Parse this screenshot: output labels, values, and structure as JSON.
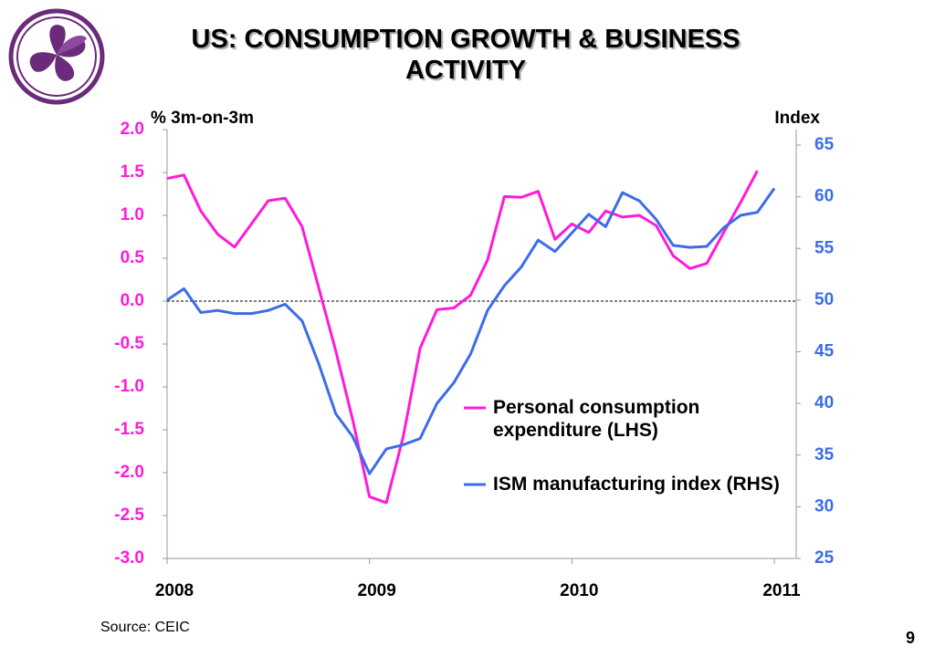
{
  "chart_data": {
    "type": "line",
    "title": "US: CONSUMPTION GROWTH & BUSINESS ACTIVITY",
    "ylabel": "% 3m-on-3m",
    "y2label": "Index",
    "source": "Source: CEIC",
    "page_number": "9",
    "xlim": [
      0,
      37.3
    ],
    "xticks": [
      {
        "value": 0,
        "label": "2008"
      },
      {
        "value": 12,
        "label": "2009"
      },
      {
        "value": 24,
        "label": "2010"
      },
      {
        "value": 36,
        "label": "2011"
      }
    ],
    "ylim": [
      -3,
      2
    ],
    "yticks": [
      {
        "value": 2,
        "label": "2.0"
      },
      {
        "value": 1.5,
        "label": "1.5"
      },
      {
        "value": 1,
        "label": "1.0"
      },
      {
        "value": 0.5,
        "label": "0.5"
      },
      {
        "value": 0,
        "label": "0.0"
      },
      {
        "value": -0.5,
        "label": "-0.5"
      },
      {
        "value": -1,
        "label": "-1.0"
      },
      {
        "value": -1.5,
        "label": "-1.5"
      },
      {
        "value": -2,
        "label": "-2.0"
      },
      {
        "value": -2.5,
        "label": "-2.5"
      },
      {
        "value": -3,
        "label": "-3.0"
      }
    ],
    "y2lim": [
      25,
      66.5
    ],
    "y2ticks": [
      25,
      30,
      35,
      40,
      45,
      50,
      55,
      60,
      65
    ],
    "series": [
      {
        "name": "Personal consumption expenditure (LHS)",
        "color": "#ff1ad9",
        "x": [
          0,
          1,
          2,
          3,
          4,
          5,
          6,
          7,
          8,
          9,
          10,
          11,
          12,
          13,
          14,
          15,
          16,
          17,
          18,
          19,
          20,
          21,
          22,
          23,
          24,
          25,
          26,
          27,
          28,
          29,
          30,
          31,
          32,
          33,
          34,
          35
        ],
        "values": [
          1.43,
          1.47,
          1.05,
          0.78,
          0.63,
          0.9,
          1.17,
          1.2,
          0.87,
          0.15,
          -0.58,
          -1.38,
          -2.28,
          -2.35,
          -1.58,
          -0.55,
          -0.1,
          -0.08,
          0.07,
          0.48,
          1.22,
          1.21,
          1.28,
          0.72,
          0.9,
          0.8,
          1.05,
          0.98,
          1.0,
          0.88,
          0.53,
          0.38,
          0.44,
          0.8,
          1.15,
          1.52
        ]
      },
      {
        "name": "ISM manufacturing index (RHS)",
        "color": "#3b6de8",
        "axis": "y2",
        "x": [
          0,
          1,
          2,
          3,
          4,
          5,
          6,
          7,
          8,
          9,
          10,
          11,
          12,
          13,
          14,
          15,
          16,
          17,
          18,
          19,
          20,
          21,
          22,
          23,
          24,
          25,
          26,
          27,
          28,
          29,
          30,
          31,
          32,
          33,
          34,
          35,
          36
        ],
        "values": [
          50.0,
          51.1,
          48.8,
          49.0,
          48.7,
          48.7,
          49.0,
          49.6,
          48.0,
          43.8,
          39.0,
          36.8,
          33.2,
          35.6,
          36.0,
          36.6,
          40.0,
          42.0,
          44.8,
          49.0,
          51.4,
          53.2,
          55.8,
          54.7,
          56.5,
          58.3,
          57.1,
          60.4,
          59.6,
          57.8,
          55.3,
          55.1,
          55.2,
          57.0,
          58.2,
          58.5,
          60.8
        ]
      }
    ]
  }
}
